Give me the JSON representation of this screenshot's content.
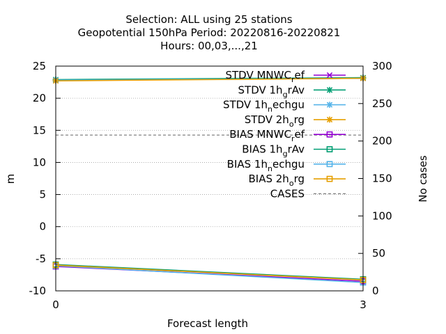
{
  "chart_data": {
    "type": "line",
    "title_lines": [
      "Selection: ALL using    25 stations",
      "Geopotential 150hPa   Period: 20220816-20220821",
      "Hours:  00,03,...,21"
    ],
    "xlabel": "Forecast length",
    "ylabel": "m",
    "y2label": "No cases",
    "xlim": [
      0,
      3
    ],
    "ylim": [
      -10,
      25
    ],
    "y2lim": [
      0,
      300
    ],
    "xticks": [
      "0",
      "3"
    ],
    "yticks": [
      "-10",
      "-5",
      "0",
      "5",
      "10",
      "15",
      "20",
      "25"
    ],
    "y2ticks": [
      "0",
      "50",
      "100",
      "150",
      "200",
      "250",
      "300"
    ],
    "grid": true,
    "legend_position": "top-right",
    "x": [
      0,
      3
    ],
    "series": [
      {
        "name_main": "STDV MNWC",
        "name_sub": "r",
        "name_tail": "ef",
        "axis": "y",
        "marker": "x",
        "color": "#9400d3",
        "values": [
          22.8,
          23.1
        ]
      },
      {
        "name_main": "STDV 1h",
        "name_sub": "g",
        "name_tail": "rAv",
        "axis": "y",
        "marker": "star",
        "color": "#009e73",
        "values": [
          22.9,
          23.2
        ]
      },
      {
        "name_main": "STDV 1h",
        "name_sub": "n",
        "name_tail": "echgu",
        "axis": "y",
        "marker": "star",
        "color": "#56b4e9",
        "values": [
          22.8,
          23.1
        ]
      },
      {
        "name_main": "STDV 2h",
        "name_sub": "o",
        "name_tail": "rg",
        "axis": "y",
        "marker": "star",
        "color": "#e69f00",
        "values": [
          22.7,
          23.1
        ]
      },
      {
        "name_main": "BIAS MNWC",
        "name_sub": "r",
        "name_tail": "ef",
        "axis": "y",
        "marker": "square",
        "color": "#9400d3",
        "values": [
          -6.2,
          -8.5
        ]
      },
      {
        "name_main": "BIAS 1h",
        "name_sub": "g",
        "name_tail": "rAv",
        "axis": "y",
        "marker": "square",
        "color": "#009e73",
        "values": [
          -5.9,
          -8.2
        ]
      },
      {
        "name_main": "BIAS 1h",
        "name_sub": "n",
        "name_tail": "echgu",
        "axis": "y",
        "marker": "square",
        "color": "#56b4e9",
        "values": [
          -6.1,
          -8.7
        ]
      },
      {
        "name_main": "BIAS 2h",
        "name_sub": "o",
        "name_tail": "rg",
        "axis": "y",
        "marker": "square",
        "color": "#e69f00",
        "values": [
          -6.0,
          -8.3
        ]
      },
      {
        "name_main": "CASES",
        "name_sub": "",
        "name_tail": "",
        "axis": "y2",
        "marker": "dash",
        "color": "#808080",
        "values": [
          208,
          208
        ]
      }
    ]
  }
}
